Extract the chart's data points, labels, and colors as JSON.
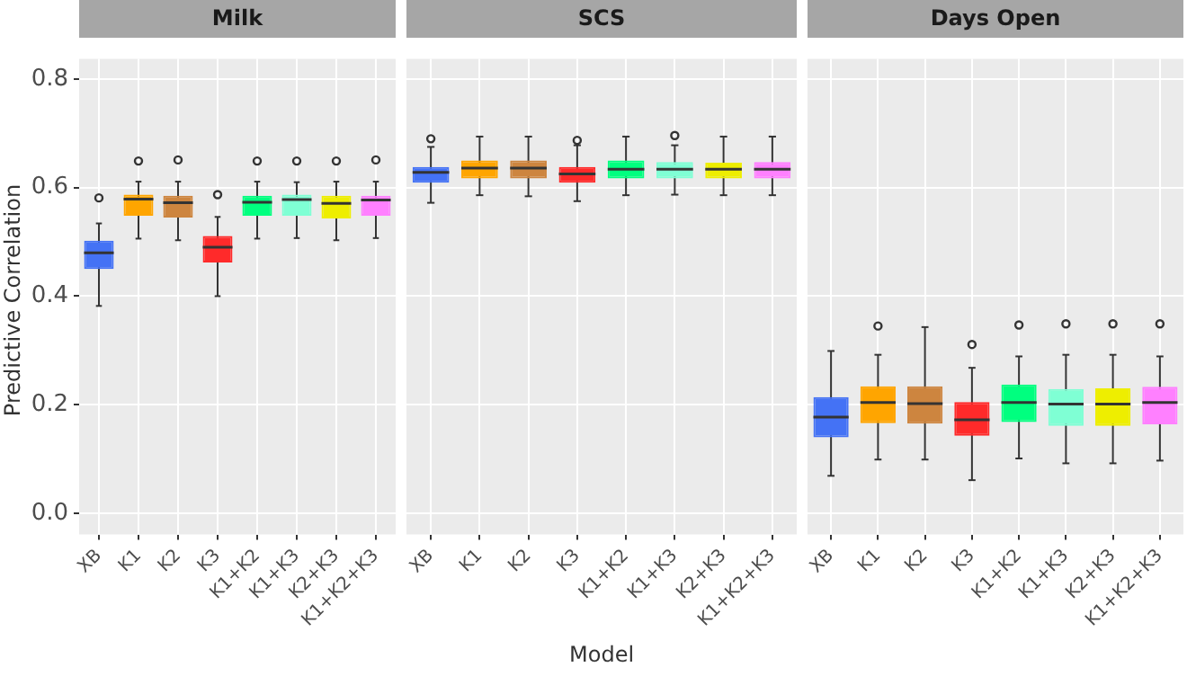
{
  "chart_data": [
    {
      "type": "box",
      "title": "Milk",
      "ylabel": "Predictive Correlation",
      "categories": [
        "XB",
        "K1",
        "K2",
        "K3",
        "K1+K2",
        "K1+K3",
        "K2+K3",
        "K1+K2+K3"
      ],
      "colors": [
        "#4472f5",
        "#ffa500",
        "#cd853f",
        "#ff2a2a",
        "#00ff7f",
        "#7fffd4",
        "#eeee00",
        "#ff80ff"
      ],
      "ylim": [
        -0.039,
        0.837
      ],
      "yticks": [
        {
          "value": 0,
          "label": "0.0"
        },
        0.2,
        0.4,
        0.6,
        0.8
      ],
      "grid": true,
      "boxes": [
        {
          "low": 0.382,
          "q1": 0.45,
          "median": 0.48,
          "q3": 0.502,
          "high": 0.534,
          "outliers": [
            0.581
          ]
        },
        {
          "low": 0.506,
          "q1": 0.548,
          "median": 0.579,
          "q3": 0.587,
          "high": 0.611,
          "outliers": [
            0.649
          ]
        },
        {
          "low": 0.503,
          "q1": 0.545,
          "median": 0.572,
          "q3": 0.585,
          "high": 0.611,
          "outliers": [
            0.651
          ]
        },
        {
          "low": 0.4,
          "q1": 0.462,
          "median": 0.49,
          "q3": 0.511,
          "high": 0.546,
          "outliers": [
            0.587
          ]
        },
        {
          "low": 0.506,
          "q1": 0.548,
          "median": 0.573,
          "q3": 0.585,
          "high": 0.611,
          "outliers": [
            0.649
          ]
        },
        {
          "low": 0.507,
          "q1": 0.548,
          "median": 0.578,
          "q3": 0.587,
          "high": 0.61,
          "outliers": [
            0.649
          ]
        },
        {
          "low": 0.503,
          "q1": 0.543,
          "median": 0.571,
          "q3": 0.585,
          "high": 0.611,
          "outliers": [
            0.649
          ]
        },
        {
          "low": 0.507,
          "q1": 0.548,
          "median": 0.577,
          "q3": 0.585,
          "high": 0.611,
          "outliers": [
            0.651
          ]
        }
      ]
    },
    {
      "type": "box",
      "title": "SCS",
      "xlabel": "Model",
      "categories": [
        "XB",
        "K1",
        "K2",
        "K3",
        "K1+K2",
        "K1+K3",
        "K2+K3",
        "K1+K2+K3"
      ],
      "colors": [
        "#4472f5",
        "#ffa500",
        "#cd853f",
        "#ff2a2a",
        "#00ff7f",
        "#7fffd4",
        "#eeee00",
        "#ff80ff"
      ],
      "ylim": [
        -0.039,
        0.837
      ],
      "yticks": [
        0,
        0.2,
        0.4,
        0.6,
        0.8
      ],
      "grid": true,
      "tick_labels": "x",
      "boxes": [
        {
          "low": 0.572,
          "q1": 0.609,
          "median": 0.628,
          "q3": 0.638,
          "high": 0.675,
          "outliers": [
            0.69
          ]
        },
        {
          "low": 0.586,
          "q1": 0.617,
          "median": 0.636,
          "q3": 0.65,
          "high": 0.694
        },
        {
          "low": 0.584,
          "q1": 0.617,
          "median": 0.636,
          "q3": 0.65,
          "high": 0.694
        },
        {
          "low": 0.575,
          "q1": 0.609,
          "median": 0.625,
          "q3": 0.638,
          "high": 0.678,
          "outliers": [
            0.687
          ]
        },
        {
          "low": 0.586,
          "q1": 0.617,
          "median": 0.634,
          "q3": 0.65,
          "high": 0.694
        },
        {
          "low": 0.587,
          "q1": 0.617,
          "median": 0.634,
          "q3": 0.647,
          "high": 0.678,
          "outliers": [
            0.696
          ]
        },
        {
          "low": 0.586,
          "q1": 0.617,
          "median": 0.634,
          "q3": 0.646,
          "high": 0.694
        },
        {
          "low": 0.586,
          "q1": 0.617,
          "median": 0.634,
          "q3": 0.647,
          "high": 0.694
        }
      ]
    },
    {
      "type": "box",
      "title": "Days Open",
      "categories": [
        "XB",
        "K1",
        "K2",
        "K3",
        "K1+K2",
        "K1+K3",
        "K2+K3",
        "K1+K2+K3"
      ],
      "colors": [
        "#4472f5",
        "#ffa500",
        "#cd853f",
        "#ff2a2a",
        "#00ff7f",
        "#7fffd4",
        "#eeee00",
        "#ff80ff"
      ],
      "ylim": [
        -0.039,
        0.837
      ],
      "yticks": [
        0,
        0.2,
        0.4,
        0.6,
        0.8
      ],
      "grid": true,
      "tick_labels": "x",
      "boxes": [
        {
          "low": 0.069,
          "q1": 0.14,
          "median": 0.177,
          "q3": 0.214,
          "high": 0.299
        },
        {
          "low": 0.099,
          "q1": 0.166,
          "median": 0.204,
          "q3": 0.234,
          "high": 0.292,
          "outliers": [
            0.345
          ]
        },
        {
          "low": 0.099,
          "q1": 0.165,
          "median": 0.202,
          "q3": 0.234,
          "high": 0.343
        },
        {
          "low": 0.061,
          "q1": 0.143,
          "median": 0.172,
          "q3": 0.205,
          "high": 0.268,
          "outliers": [
            0.311
          ]
        },
        {
          "low": 0.101,
          "q1": 0.168,
          "median": 0.204,
          "q3": 0.237,
          "high": 0.289,
          "outliers": [
            0.347
          ]
        },
        {
          "low": 0.092,
          "q1": 0.161,
          "median": 0.201,
          "q3": 0.229,
          "high": 0.292,
          "outliers": [
            0.349
          ]
        },
        {
          "low": 0.092,
          "q1": 0.161,
          "median": 0.201,
          "q3": 0.23,
          "high": 0.292,
          "outliers": [
            0.349
          ]
        },
        {
          "low": 0.097,
          "q1": 0.164,
          "median": 0.204,
          "q3": 0.233,
          "high": 0.289,
          "outliers": [
            0.349
          ]
        }
      ]
    }
  ]
}
